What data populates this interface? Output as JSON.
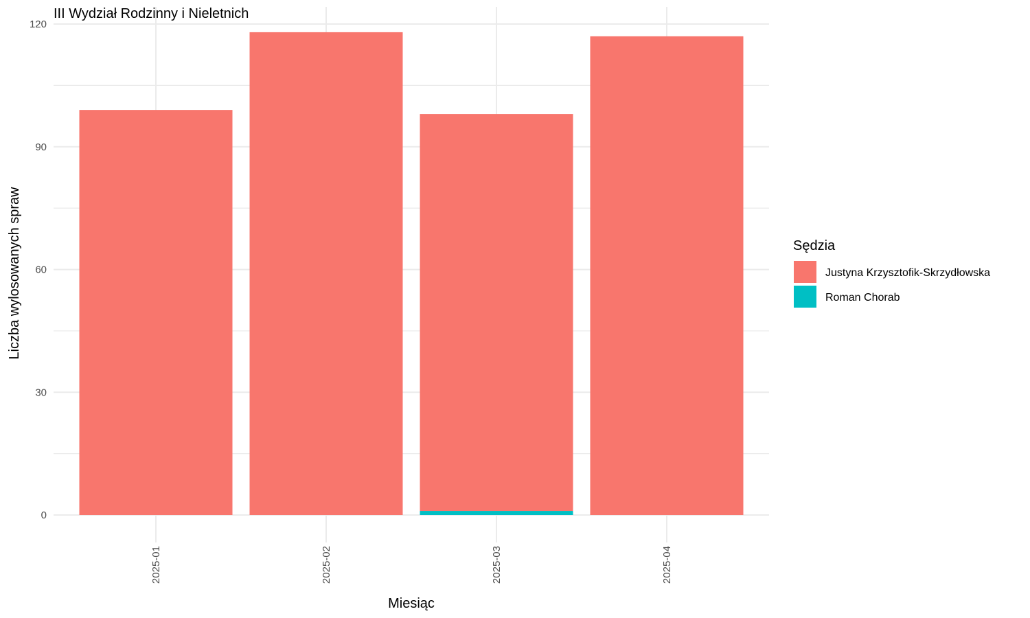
{
  "chart_data": {
    "type": "bar",
    "stacked": true,
    "title": "III Wydział Rodzinny i Nieletnich",
    "xlabel": "Miesiąc",
    "ylabel": "Liczba wylosowanych spraw",
    "categories": [
      "2025-01",
      "2025-02",
      "2025-03",
      "2025-04"
    ],
    "series": [
      {
        "name": "Roman Chorab",
        "color": "#00BFC4",
        "values": [
          0,
          0,
          1,
          0
        ]
      },
      {
        "name": "Justyna Krzysztofik-Skrzydłowska",
        "color": "#F8766D",
        "values": [
          99,
          118,
          97,
          117
        ]
      }
    ],
    "ylim": [
      0,
      120
    ],
    "yticks": [
      0,
      30,
      60,
      90,
      120
    ],
    "grid": true,
    "legend": {
      "title": "Sędzia",
      "position": "right",
      "order": [
        "Justyna Krzysztofik-Skrzydłowska",
        "Roman Chorab"
      ]
    }
  }
}
